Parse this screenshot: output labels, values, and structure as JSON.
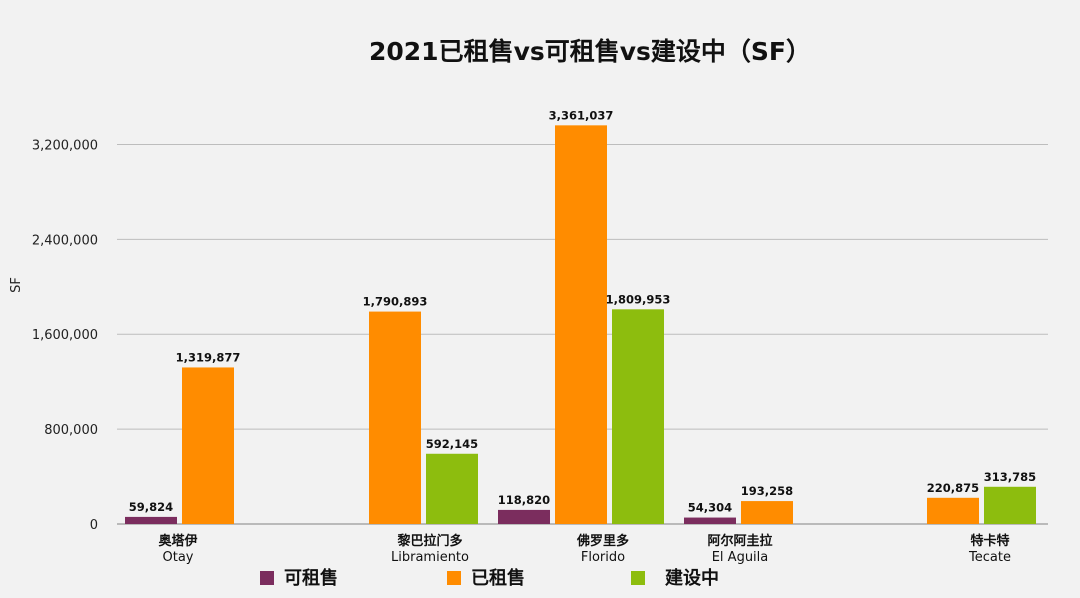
{
  "chart_data": {
    "type": "bar",
    "title": "2021已租售vs可租售vs建设中（SF）",
    "xlabel": "",
    "ylabel": "SF",
    "ylim": [
      0,
      3600000
    ],
    "yticks": [
      0,
      800000,
      1600000,
      2400000,
      3200000
    ],
    "ytick_labels": [
      "0",
      "800,000",
      "1,600,000",
      "2,400,000",
      "3,200,000"
    ],
    "grid": true,
    "legend_position": "bottom",
    "categories": [
      {
        "zh": "奥塔伊",
        "en": "Otay"
      },
      {
        "zh": "黎巴拉门多",
        "en": "Libramiento"
      },
      {
        "zh": "佛罗里多",
        "en": "Florido"
      },
      {
        "zh": "阿尔阿圭拉",
        "en": "El Aguila"
      },
      {
        "zh": "特卡特",
        "en": "Tecate"
      }
    ],
    "series": [
      {
        "name": "可租售",
        "color": "#7b2d5e",
        "values": [
          59824,
          null,
          118820,
          54304,
          null
        ],
        "labels": [
          "59,824",
          "",
          "118,820",
          "54,304",
          ""
        ]
      },
      {
        "name": "已租售",
        "color": "#ff8c00",
        "values": [
          1319877,
          1790893,
          3361037,
          193258,
          220875
        ],
        "labels": [
          "1,319,877",
          "1,790,893",
          "3,361,037",
          "193,258",
          "220,875"
        ]
      },
      {
        "name": "建设中",
        "color": "#8dbd0e",
        "values": [
          null,
          592145,
          1809953,
          null,
          313785
        ],
        "labels": [
          "",
          "592,145",
          "1,809,953",
          "",
          "313,785"
        ]
      }
    ]
  }
}
